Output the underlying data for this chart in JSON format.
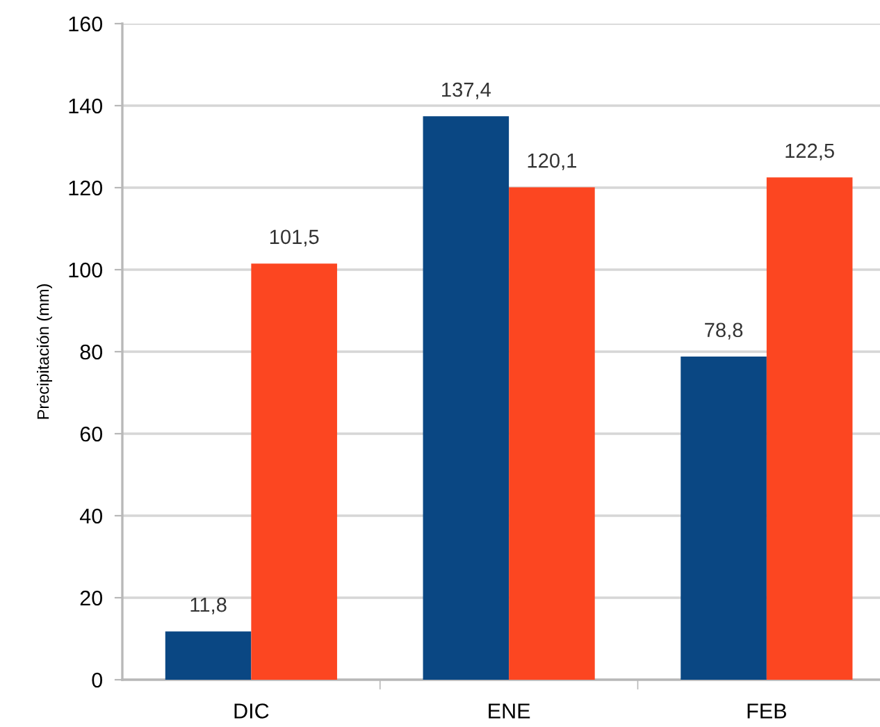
{
  "chart_data": {
    "type": "bar",
    "ylabel": "Precipitación (mm)",
    "categories": [
      "DIC",
      "ENE",
      "FEB"
    ],
    "series": [
      {
        "color": "#0a4783",
        "values": [
          11.8,
          137.4,
          78.8
        ],
        "value_labels": [
          "11,8",
          "137,4",
          "78,8"
        ]
      },
      {
        "color": "#fc4621",
        "values": [
          101.5,
          120.1,
          122.5
        ],
        "value_labels": [
          "101,5",
          "120,1",
          "122,5"
        ]
      }
    ],
    "ylim": [
      0,
      160
    ],
    "yticks": [
      0,
      20,
      40,
      60,
      80,
      100,
      120,
      140,
      160
    ],
    "grid": "y"
  }
}
